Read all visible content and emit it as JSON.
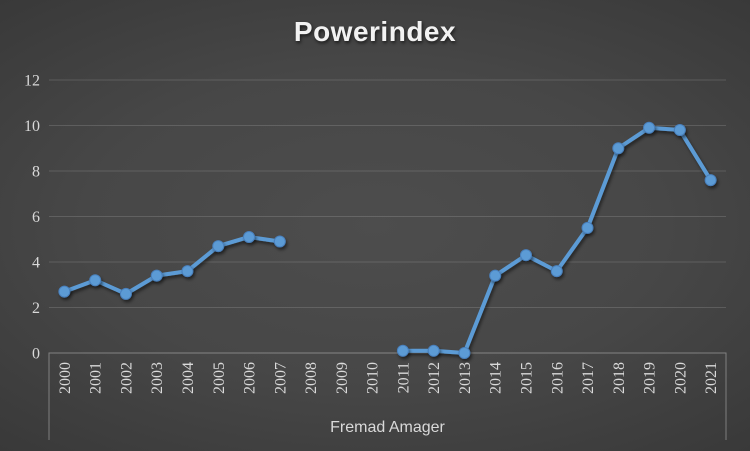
{
  "chart": {
    "colors": {
      "line": "#5b9bd5",
      "line_edge": "#4a80bd",
      "gridline": "rgba(255,255,255,0.14)",
      "axis": "rgba(255,255,255,0.34)",
      "tick_text": "#d9d9d9",
      "title_text": "#f2f2f2",
      "background_center": "#4d4d4d",
      "background_edge": "#232323"
    }
  },
  "chart_data": {
    "type": "line",
    "title": "Powerindex",
    "xlabel": "Fremad Amager",
    "ylabel": "",
    "categories": [
      "2000",
      "2001",
      "2002",
      "2003",
      "2004",
      "2005",
      "2006",
      "2007",
      "2008",
      "2009",
      "2010",
      "2011",
      "2012",
      "2013",
      "2014",
      "2015",
      "2016",
      "2017",
      "2018",
      "2019",
      "2020",
      "2021"
    ],
    "series": [
      {
        "name": "Fremad Amager",
        "values": [
          2.7,
          3.2,
          2.6,
          3.4,
          3.6,
          4.7,
          5.1,
          4.9,
          null,
          null,
          null,
          0.1,
          0.1,
          0.0,
          3.4,
          4.3,
          3.6,
          5.5,
          9.0,
          9.9,
          9.8,
          7.6
        ]
      }
    ],
    "ylim": [
      0,
      12
    ],
    "yticks": [
      0,
      2,
      4,
      6,
      8,
      10,
      12
    ],
    "grid": true,
    "legend_position": "none",
    "marker": "circle",
    "note_gap_years": "2008-2010 have no data points"
  }
}
